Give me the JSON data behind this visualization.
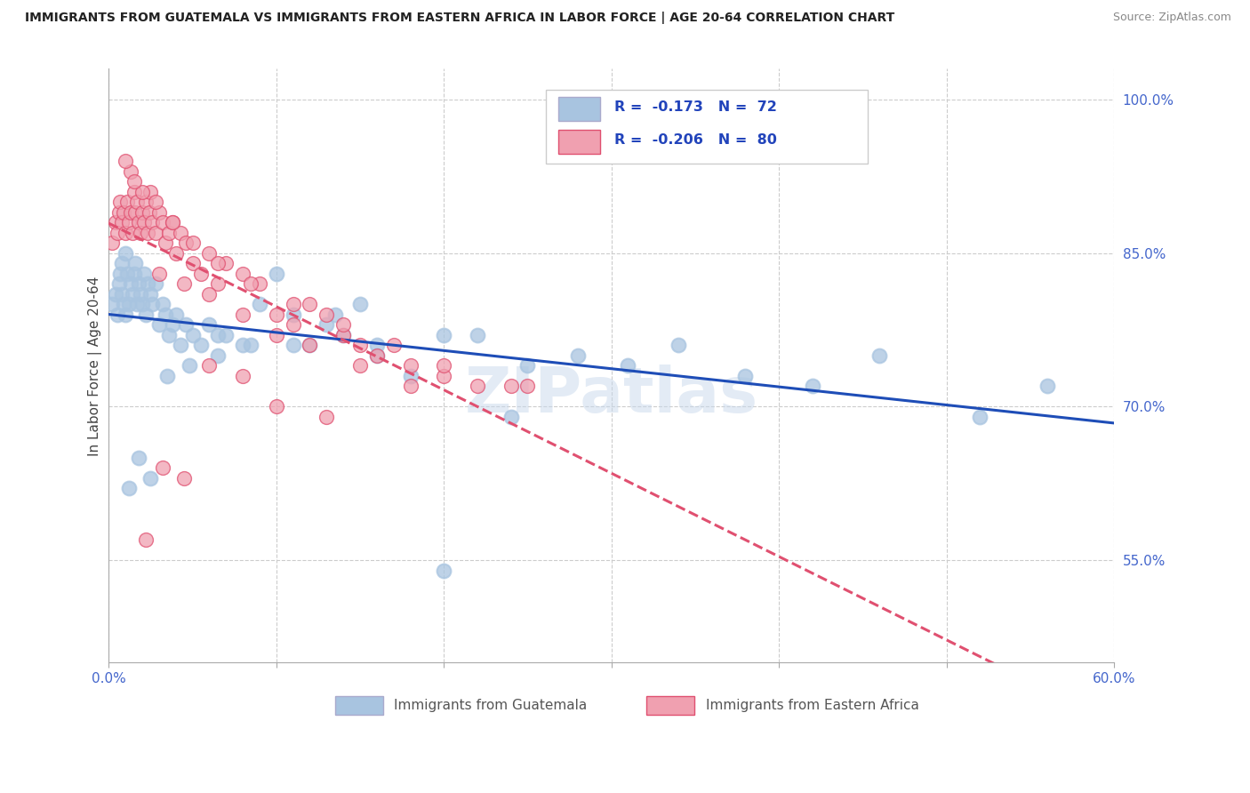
{
  "title": "IMMIGRANTS FROM GUATEMALA VS IMMIGRANTS FROM EASTERN AFRICA IN LABOR FORCE | AGE 20-64 CORRELATION CHART",
  "source": "Source: ZipAtlas.com",
  "ylabel": "In Labor Force | Age 20-64",
  "xlim": [
    0.0,
    0.6
  ],
  "ylim": [
    0.45,
    1.03
  ],
  "xticks": [
    0.0,
    0.1,
    0.2,
    0.3,
    0.4,
    0.5,
    0.6
  ],
  "yticks_right": [
    0.55,
    0.7,
    0.85,
    1.0
  ],
  "yticklabels_right": [
    "55.0%",
    "70.0%",
    "85.0%",
    "100.0%"
  ],
  "blue_color": "#a8c4e0",
  "blue_line_color": "#1e4db7",
  "pink_color": "#f0a0b0",
  "pink_line_color": "#e05070",
  "legend_R1": "-0.173",
  "legend_N1": "72",
  "legend_R2": "-0.206",
  "legend_N2": "80",
  "watermark": "ZIPatlas",
  "label1": "Immigrants from Guatemala",
  "label2": "Immigrants from Eastern Africa",
  "guatemala_x": [
    0.002,
    0.004,
    0.005,
    0.006,
    0.007,
    0.008,
    0.008,
    0.009,
    0.01,
    0.01,
    0.011,
    0.012,
    0.013,
    0.014,
    0.015,
    0.016,
    0.017,
    0.018,
    0.019,
    0.02,
    0.021,
    0.022,
    0.023,
    0.025,
    0.026,
    0.028,
    0.03,
    0.032,
    0.034,
    0.036,
    0.038,
    0.04,
    0.043,
    0.046,
    0.05,
    0.055,
    0.06,
    0.065,
    0.07,
    0.08,
    0.09,
    0.1,
    0.11,
    0.12,
    0.13,
    0.14,
    0.15,
    0.16,
    0.18,
    0.2,
    0.22,
    0.25,
    0.28,
    0.31,
    0.34,
    0.38,
    0.42,
    0.46,
    0.52,
    0.56,
    0.012,
    0.018,
    0.025,
    0.035,
    0.048,
    0.065,
    0.085,
    0.11,
    0.135,
    0.16,
    0.2,
    0.24
  ],
  "guatemala_y": [
    0.8,
    0.81,
    0.79,
    0.82,
    0.83,
    0.81,
    0.84,
    0.8,
    0.85,
    0.79,
    0.83,
    0.8,
    0.82,
    0.81,
    0.83,
    0.84,
    0.8,
    0.82,
    0.81,
    0.8,
    0.83,
    0.79,
    0.82,
    0.81,
    0.8,
    0.82,
    0.78,
    0.8,
    0.79,
    0.77,
    0.78,
    0.79,
    0.76,
    0.78,
    0.77,
    0.76,
    0.78,
    0.75,
    0.77,
    0.76,
    0.8,
    0.83,
    0.79,
    0.76,
    0.78,
    0.77,
    0.8,
    0.75,
    0.73,
    0.54,
    0.77,
    0.74,
    0.75,
    0.74,
    0.76,
    0.73,
    0.72,
    0.75,
    0.69,
    0.72,
    0.62,
    0.65,
    0.63,
    0.73,
    0.74,
    0.77,
    0.76,
    0.76,
    0.79,
    0.76,
    0.77,
    0.69
  ],
  "eastern_africa_x": [
    0.002,
    0.004,
    0.005,
    0.006,
    0.007,
    0.008,
    0.009,
    0.01,
    0.011,
    0.012,
    0.013,
    0.014,
    0.015,
    0.016,
    0.017,
    0.018,
    0.019,
    0.02,
    0.021,
    0.022,
    0.023,
    0.024,
    0.025,
    0.026,
    0.028,
    0.03,
    0.032,
    0.034,
    0.036,
    0.038,
    0.04,
    0.043,
    0.046,
    0.05,
    0.055,
    0.06,
    0.065,
    0.07,
    0.08,
    0.09,
    0.1,
    0.11,
    0.12,
    0.13,
    0.14,
    0.15,
    0.16,
    0.18,
    0.2,
    0.22,
    0.25,
    0.03,
    0.045,
    0.06,
    0.08,
    0.1,
    0.12,
    0.15,
    0.18,
    0.013,
    0.02,
    0.028,
    0.038,
    0.05,
    0.065,
    0.085,
    0.11,
    0.14,
    0.17,
    0.2,
    0.24,
    0.01,
    0.015,
    0.022,
    0.032,
    0.045,
    0.06,
    0.08,
    0.1,
    0.13
  ],
  "eastern_africa_y": [
    0.86,
    0.88,
    0.87,
    0.89,
    0.9,
    0.88,
    0.89,
    0.87,
    0.9,
    0.88,
    0.89,
    0.87,
    0.91,
    0.89,
    0.9,
    0.88,
    0.87,
    0.89,
    0.88,
    0.9,
    0.87,
    0.89,
    0.91,
    0.88,
    0.87,
    0.89,
    0.88,
    0.86,
    0.87,
    0.88,
    0.85,
    0.87,
    0.86,
    0.84,
    0.83,
    0.85,
    0.82,
    0.84,
    0.83,
    0.82,
    0.79,
    0.78,
    0.8,
    0.79,
    0.77,
    0.76,
    0.75,
    0.74,
    0.73,
    0.72,
    0.72,
    0.83,
    0.82,
    0.81,
    0.79,
    0.77,
    0.76,
    0.74,
    0.72,
    0.93,
    0.91,
    0.9,
    0.88,
    0.86,
    0.84,
    0.82,
    0.8,
    0.78,
    0.76,
    0.74,
    0.72,
    0.94,
    0.92,
    0.57,
    0.64,
    0.63,
    0.74,
    0.73,
    0.7,
    0.69
  ]
}
